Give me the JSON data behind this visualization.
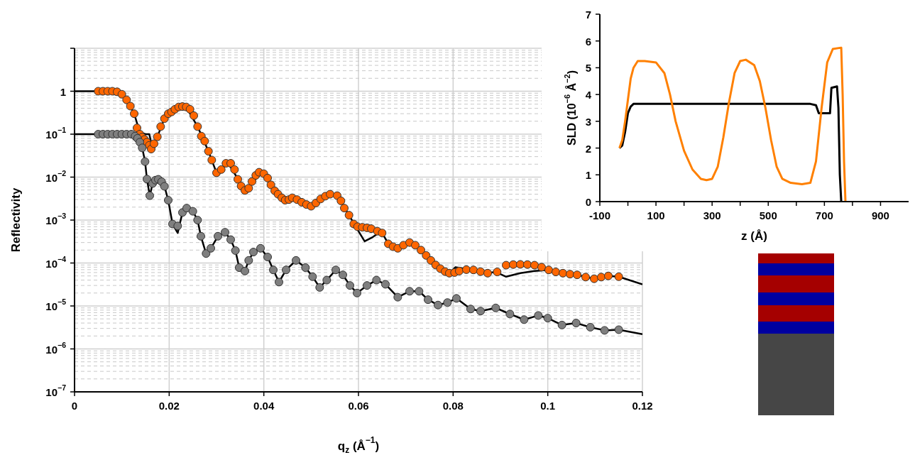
{
  "chart_data": [
    {
      "type": "scatter",
      "xlabel": "q$_{z}$ (Å$^{−1}$)",
      "ylabel": "Reflectivity",
      "xlim": [
        0,
        0.12
      ],
      "xticks": [
        0,
        0.02,
        0.04,
        0.06,
        0.08,
        0.1,
        0.12
      ],
      "ylim": [
        1e-07,
        10
      ],
      "yticks": [
        {
          "value": 1e-07,
          "label": "10$^{−7}$"
        },
        {
          "value": 1e-06,
          "label": "10$^{−6}$"
        },
        {
          "value": 1e-05,
          "label": "10$^{−5}$"
        },
        {
          "value": 0.0001,
          "label": "10$^{−4}$"
        },
        {
          "value": 0.001,
          "label": "10$^{−3}$"
        },
        {
          "value": 0.01,
          "label": "10$^{−2}$"
        },
        {
          "value": 0.1,
          "label": "10$^{−1}$"
        },
        1,
        {
          "value": 10,
          "label": null
        }
      ],
      "log": "y",
      "grid": true,
      "series": [
        {
          "type": "line",
          "color": "#000000",
          "marker": "none",
          "x": [
            0,
            0.008,
            0.0098,
            0.011,
            0.0126,
            0.0138,
            0.015,
            0.0158,
            0.0164,
            0.0175,
            0.019,
            0.022,
            0.0236,
            0.026,
            0.0283,
            0.03,
            0.0325,
            0.036,
            0.0395,
            0.043,
            0.0445,
            0.047,
            0.05,
            0.054,
            0.0555,
            0.058,
            0.0598,
            0.0613,
            0.063,
            0.0648,
            0.0663,
            0.0683,
            0.0708,
            0.0732,
            0.0773,
            0.0792,
            0.0805,
            0.082,
            0.0843,
            0.0873,
            0.089,
            0.0912,
            0.0942,
            0.0972,
            0.1002,
            0.1032,
            0.1062,
            0.1098,
            0.1128,
            0.115,
            0.12
          ],
          "values": [
            1,
            1,
            0.9,
            0.63,
            0.3,
            0.11,
            0.1,
            0.1,
            0.05,
            0.087,
            0.23,
            0.43,
            0.43,
            0.15,
            0.04,
            0.0126,
            0.021,
            0.0049,
            0.0125,
            0.004,
            0.0029,
            0.003,
            0.0021,
            0.004,
            0.0037,
            0.0013,
            0.0006,
            0.00032,
            0.0004,
            0.00055,
            0.00028,
            0.00022,
            0.0003,
            0.0002,
            7.4e-05,
            5.8e-05,
            8e-05,
            7.5e-05,
            6.9e-05,
            5.8e-05,
            6.2e-05,
            4.8e-05,
            5.8e-05,
            6.5e-05,
            6.9e-05,
            5.8e-05,
            5.3e-05,
            4.3e-05,
            5e-05,
            4.8e-05,
            3.2e-05
          ]
        },
        {
          "type": "line",
          "color": "#000000",
          "marker": "none",
          "x": [
            0,
            0.012,
            0.0128,
            0.0133,
            0.0138,
            0.0143,
            0.0149,
            0.0153,
            0.0159,
            0.0165,
            0.0171,
            0.0177,
            0.0184,
            0.019,
            0.0198,
            0.0207,
            0.0218,
            0.0228,
            0.0237,
            0.025,
            0.026,
            0.0267,
            0.0278,
            0.0288,
            0.0303,
            0.0318,
            0.033,
            0.034,
            0.0348,
            0.036,
            0.0368,
            0.0378,
            0.0393,
            0.0408,
            0.042,
            0.0432,
            0.0447,
            0.0468,
            0.0488,
            0.0503,
            0.0518,
            0.0533,
            0.0552,
            0.0567,
            0.0582,
            0.0597,
            0.0618,
            0.0638,
            0.0657,
            0.0683,
            0.0708,
            0.0728,
            0.0747,
            0.0768,
            0.0788,
            0.0807,
            0.0837,
            0.0858,
            0.089,
            0.092,
            0.095,
            0.098,
            0.1,
            0.103,
            0.106,
            0.109,
            0.112,
            0.115,
            0.12
          ],
          "values": [
            0.1,
            0.1,
            0.09,
            0.08,
            0.065,
            0.048,
            0.023,
            0.009,
            0.0037,
            0.0071,
            0.0085,
            0.0089,
            0.0078,
            0.0061,
            0.0029,
            0.00081,
            0.0005,
            0.0015,
            0.0019,
            0.0016,
            0.001,
            0.00042,
            0.000166,
            0.00022,
            0.00042,
            0.00052,
            0.00035,
            0.000195,
            7.8e-05,
            6.5e-05,
            0.000115,
            0.00018,
            0.00022,
            0.000138,
            6.9e-05,
            3.6e-05,
            6.9e-05,
            0.000115,
            7.8e-05,
            4.8e-05,
            2.7e-05,
            4e-05,
            6.9e-05,
            5.3e-05,
            3e-05,
            2e-05,
            3e-05,
            4e-05,
            3.2e-05,
            1.6e-05,
            2.2e-05,
            2.2e-05,
            1.4e-05,
            1.05e-05,
            1.2e-05,
            1.5e-05,
            8.5e-06,
            7.6e-06,
            9e-06,
            6.5e-06,
            4.8e-06,
            6e-06,
            5.2e-06,
            3.6e-06,
            4e-06,
            3.2e-06,
            2.7e-06,
            2.8e-06,
            2.2e-06
          ]
        },
        {
          "color": "#ff6600",
          "marker": "circle",
          "x": [
            0.005,
            0.006,
            0.007,
            0.008,
            0.009,
            0.01,
            0.011,
            0.0118,
            0.0126,
            0.0132,
            0.0138,
            0.0143,
            0.0148,
            0.0153,
            0.0158,
            0.0162,
            0.0168,
            0.0175,
            0.0182,
            0.019,
            0.0198,
            0.0205,
            0.0212,
            0.022,
            0.0228,
            0.0236,
            0.0244,
            0.0252,
            0.026,
            0.0268,
            0.0275,
            0.0283,
            0.029,
            0.03,
            0.031,
            0.032,
            0.033,
            0.0338,
            0.0345,
            0.0352,
            0.036,
            0.0368,
            0.0375,
            0.0383,
            0.039,
            0.04,
            0.0408,
            0.0415,
            0.0423,
            0.043,
            0.0438,
            0.0445,
            0.0453,
            0.046,
            0.047,
            0.048,
            0.049,
            0.05,
            0.051,
            0.052,
            0.053,
            0.054,
            0.0555,
            0.0563,
            0.057,
            0.058,
            0.059,
            0.0598,
            0.0608,
            0.0618,
            0.0627,
            0.064,
            0.065,
            0.0663,
            0.0673,
            0.0683,
            0.0695,
            0.0708,
            0.072,
            0.0732,
            0.0743,
            0.0753,
            0.0763,
            0.0773,
            0.0783,
            0.0792,
            0.0803,
            0.0813,
            0.0828,
            0.0843,
            0.0858,
            0.0873,
            0.0893,
            0.0912,
            0.0927,
            0.0942,
            0.0957,
            0.0972,
            0.0987,
            0.1002,
            0.1017,
            0.1032,
            0.1047,
            0.1062,
            0.108,
            0.1098,
            0.1113,
            0.1128,
            0.115
          ],
          "values": [
            1,
            1,
            1,
            1,
            0.97,
            0.85,
            0.63,
            0.45,
            0.3,
            0.14,
            0.1,
            0.085,
            0.075,
            0.065,
            0.055,
            0.045,
            0.06,
            0.087,
            0.15,
            0.23,
            0.3,
            0.33,
            0.38,
            0.43,
            0.44,
            0.43,
            0.38,
            0.27,
            0.15,
            0.09,
            0.069,
            0.04,
            0.025,
            0.0126,
            0.015,
            0.021,
            0.021,
            0.015,
            0.0089,
            0.0062,
            0.0049,
            0.0055,
            0.0079,
            0.011,
            0.013,
            0.012,
            0.0095,
            0.0066,
            0.0048,
            0.004,
            0.0033,
            0.0029,
            0.003,
            0.0033,
            0.003,
            0.0026,
            0.0023,
            0.0021,
            0.0025,
            0.0031,
            0.0036,
            0.004,
            0.0037,
            0.0028,
            0.0019,
            0.0013,
            0.00081,
            0.0007,
            0.00068,
            0.00066,
            0.00063,
            0.00055,
            0.0005,
            0.00028,
            0.00024,
            0.00022,
            0.00026,
            0.0003,
            0.00026,
            0.0002,
            0.00015,
            0.000115,
            9e-05,
            7.4e-05,
            6.3e-05,
            5.8e-05,
            6e-05,
            6.5e-05,
            7e-05,
            6.9e-05,
            6.3e-05,
            5.8e-05,
            6.2e-05,
            8.9e-05,
            9.2e-05,
            9.3e-05,
            9.2e-05,
            8.9e-05,
            8e-05,
            6.9e-05,
            6.2e-05,
            5.8e-05,
            5.5e-05,
            5.3e-05,
            4.7e-05,
            4.3e-05,
            4.7e-05,
            5e-05,
            4.8e-05
          ]
        },
        {
          "color": "#7f7f7f",
          "marker": "circle",
          "x": [
            0.005,
            0.006,
            0.007,
            0.008,
            0.009,
            0.01,
            0.011,
            0.012,
            0.0128,
            0.0133,
            0.0138,
            0.0143,
            0.0149,
            0.0153,
            0.0159,
            0.0165,
            0.0171,
            0.0177,
            0.0184,
            0.019,
            0.0198,
            0.0207,
            0.0218,
            0.0228,
            0.0237,
            0.025,
            0.026,
            0.0267,
            0.0278,
            0.0288,
            0.0303,
            0.0318,
            0.033,
            0.034,
            0.0348,
            0.036,
            0.0368,
            0.0378,
            0.0393,
            0.0408,
            0.042,
            0.0432,
            0.0447,
            0.0468,
            0.0488,
            0.0503,
            0.0518,
            0.0533,
            0.0552,
            0.0567,
            0.0582,
            0.0597,
            0.0618,
            0.0638,
            0.0657,
            0.0683,
            0.0708,
            0.0728,
            0.0747,
            0.0768,
            0.0788,
            0.0807,
            0.0837,
            0.0858,
            0.089,
            0.092,
            0.095,
            0.098,
            0.1,
            0.103,
            0.106,
            0.109,
            0.112,
            0.115
          ],
          "values": [
            0.1,
            0.1,
            0.1,
            0.1,
            0.1,
            0.1,
            0.1,
            0.1,
            0.09,
            0.08,
            0.065,
            0.048,
            0.023,
            0.009,
            0.0037,
            0.0071,
            0.0085,
            0.0089,
            0.0078,
            0.0061,
            0.0029,
            0.00081,
            0.00073,
            0.0015,
            0.0019,
            0.0016,
            0.001,
            0.00042,
            0.000166,
            0.00022,
            0.00042,
            0.00052,
            0.00035,
            0.000195,
            7.8e-05,
            6.5e-05,
            0.000115,
            0.00018,
            0.00022,
            0.000138,
            6.9e-05,
            3.6e-05,
            6.9e-05,
            0.000115,
            7.8e-05,
            4.8e-05,
            2.7e-05,
            4e-05,
            6.9e-05,
            5.3e-05,
            3e-05,
            2e-05,
            3e-05,
            4e-05,
            3.2e-05,
            1.6e-05,
            2.2e-05,
            2.2e-05,
            1.4e-05,
            1.05e-05,
            1.2e-05,
            1.5e-05,
            8.5e-06,
            7.6e-06,
            9e-06,
            6.5e-06,
            4.8e-06,
            6e-06,
            5.2e-06,
            3.6e-06,
            4e-06,
            3.2e-06,
            2.7e-06,
            2.8e-06
          ]
        }
      ]
    },
    {
      "type": "line",
      "xlabel": "z (Å)",
      "ylabel": "SLD (10$^{−6}$ Å$^{−2}$)",
      "xlim": [
        -100,
        1000
      ],
      "xticks": [
        -100,
        {
          "value": 0,
          "label": null
        },
        100,
        {
          "value": 200,
          "label": null
        },
        300,
        {
          "value": 400,
          "label": null
        },
        500,
        {
          "value": 600,
          "label": null
        },
        700,
        {
          "value": 800,
          "label": null
        },
        900
      ],
      "ylim": [
        0,
        7
      ],
      "yticks": [
        0,
        1,
        2,
        3,
        4,
        5,
        6,
        7
      ],
      "series": [
        {
          "color": "#000000",
          "x": [
            -30,
            -20,
            -10,
            0,
            10,
            20,
            650,
            670,
            680,
            720,
            725,
            745,
            750,
            755,
            760
          ],
          "values": [
            2,
            2.1,
            2.6,
            3.3,
            3.55,
            3.65,
            3.65,
            3.6,
            3.3,
            3.3,
            4.25,
            4.3,
            3.5,
            1,
            0
          ]
        },
        {
          "color": "#ff8000",
          "x": [
            -30,
            -20,
            -10,
            0,
            10,
            20,
            35,
            60,
            100,
            130,
            150,
            170,
            200,
            230,
            260,
            280,
            300,
            320,
            340,
            360,
            380,
            400,
            420,
            450,
            470,
            490,
            510,
            530,
            550,
            580,
            620,
            650,
            670,
            690,
            710,
            730,
            760,
            765,
            770,
            775
          ],
          "values": [
            2,
            2.3,
            3,
            3.8,
            4.6,
            5,
            5.25,
            5.25,
            5.2,
            4.8,
            4,
            3,
            1.9,
            1.2,
            0.85,
            0.8,
            0.85,
            1.3,
            2.4,
            3.7,
            4.8,
            5.25,
            5.3,
            5.1,
            4.5,
            3.5,
            2.3,
            1.3,
            0.85,
            0.7,
            0.65,
            0.7,
            1.5,
            3.5,
            5.2,
            5.7,
            5.75,
            4,
            1.5,
            0
          ]
        }
      ]
    }
  ]
}
